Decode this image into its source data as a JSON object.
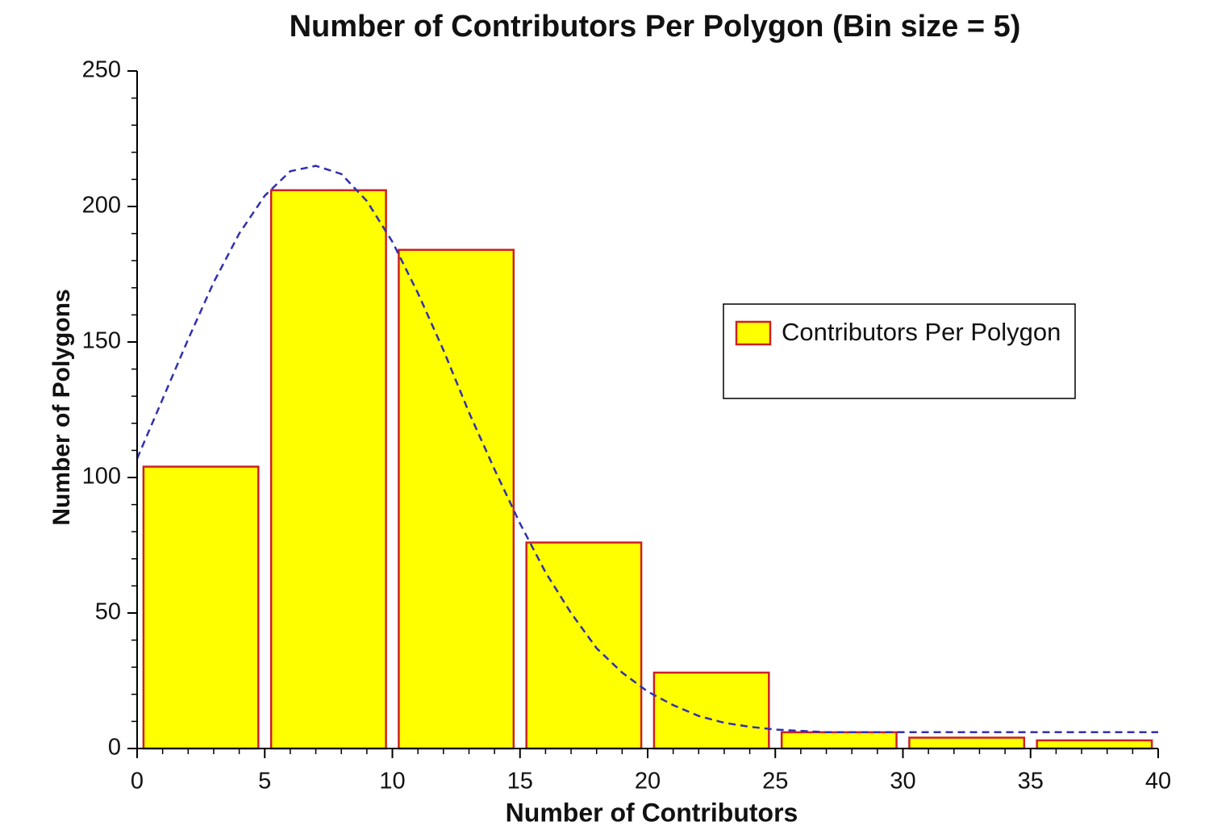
{
  "chart_data": {
    "type": "histogram",
    "title": "Number of Contributors Per Polygon (Bin size = 5)",
    "xlabel": "Number of Contributors",
    "ylabel": "Number of Polygons",
    "bins": [
      0,
      5,
      10,
      15,
      20,
      25,
      30,
      35,
      40
    ],
    "series": [
      {
        "name": "Contributors Per Polygon",
        "color": "#ffff00",
        "edgecolor": "#cc2020",
        "values": [
          104,
          206,
          184,
          76,
          28,
          6,
          4,
          3
        ]
      }
    ],
    "fit": {
      "color": "#3030b0",
      "dashed": true,
      "x": [
        0,
        1,
        2,
        3,
        4,
        5,
        6,
        7,
        8,
        9,
        10,
        11,
        12,
        13,
        14,
        15,
        16,
        17,
        18,
        19,
        20,
        21,
        22,
        23,
        24,
        25,
        27,
        30,
        35,
        40
      ],
      "values": [
        107,
        129,
        151,
        172,
        190,
        204,
        213,
        215,
        212,
        202,
        187,
        168,
        147,
        124,
        103,
        83,
        65,
        50,
        37,
        28,
        21,
        16,
        12,
        9.5,
        8,
        7,
        6,
        6,
        6,
        6
      ]
    },
    "xlim": [
      0,
      40
    ],
    "xticks": [
      0,
      5,
      10,
      15,
      20,
      25,
      30,
      35,
      40
    ],
    "ylim": [
      0,
      250
    ],
    "yticks": [
      0,
      50,
      100,
      150,
      200,
      250
    ],
    "legend": "upper right"
  }
}
